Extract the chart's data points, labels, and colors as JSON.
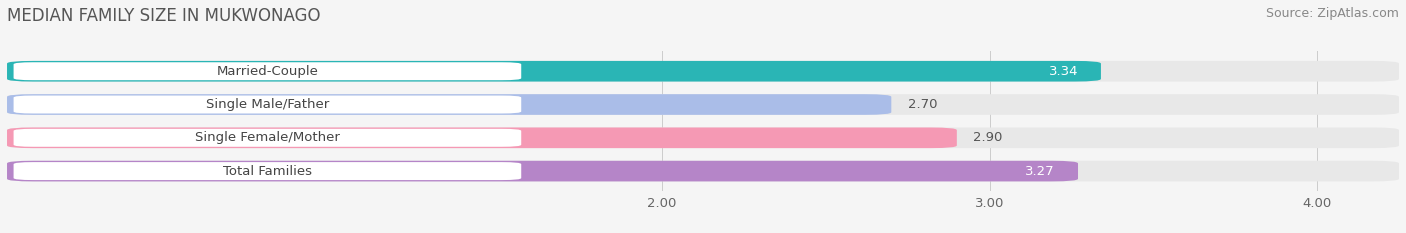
{
  "title": "MEDIAN FAMILY SIZE IN MUKWONAGO",
  "source": "Source: ZipAtlas.com",
  "categories": [
    "Married-Couple",
    "Single Male/Father",
    "Single Female/Mother",
    "Total Families"
  ],
  "values": [
    3.34,
    2.7,
    2.9,
    3.27
  ],
  "bar_colors": [
    "#2ab5b5",
    "#aabde8",
    "#f599b4",
    "#b585c8"
  ],
  "xlim_min": 0.0,
  "xlim_max": 4.25,
  "xticks": [
    2.0,
    3.0,
    4.0
  ],
  "bar_height": 0.62,
  "background_color": "#f5f5f5",
  "bar_bg_color": "#e8e8e8",
  "value_fontsize": 9.5,
  "label_fontsize": 9.5,
  "title_fontsize": 12,
  "source_fontsize": 9,
  "white_value_bars": [
    0,
    3
  ],
  "dark_value_bars": [
    1,
    2
  ]
}
